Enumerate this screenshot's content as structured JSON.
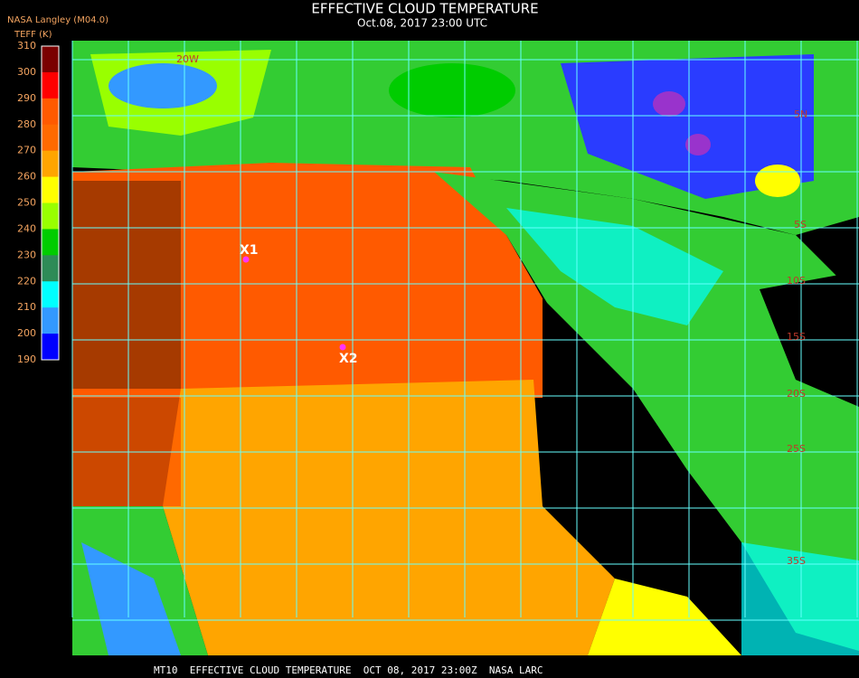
{
  "header": {
    "title": "EFFECTIVE CLOUD TEMPERATURE",
    "subtitle": "Oct.08, 2017 23:00 UTC"
  },
  "legend": {
    "source": "NASA Langley (M04.0)",
    "unit": "TEFF (K)",
    "ticks": [
      310,
      300,
      290,
      280,
      270,
      260,
      250,
      240,
      230,
      220,
      210,
      200,
      190
    ],
    "colors": [
      "#7a0000",
      "#ff0000",
      "#ff5a00",
      "#ff6a00",
      "#ffa500",
      "#ffff00",
      "#99ff00",
      "#00cc00",
      "#2e8b57",
      "#00ffff",
      "#3399ff",
      "#0000ff",
      "#9933cc"
    ]
  },
  "map": {
    "markers": [
      {
        "label": "X1"
      },
      {
        "label": "X2"
      }
    ],
    "grid_labels": [
      "20W",
      "5N",
      "5S",
      "10S",
      "15S",
      "20S",
      "25S",
      "35S"
    ]
  },
  "footer": "MT10  EFFECTIVE CLOUD TEMPERATURE  OCT 08, 2017 23:00Z  NASA LARC"
}
